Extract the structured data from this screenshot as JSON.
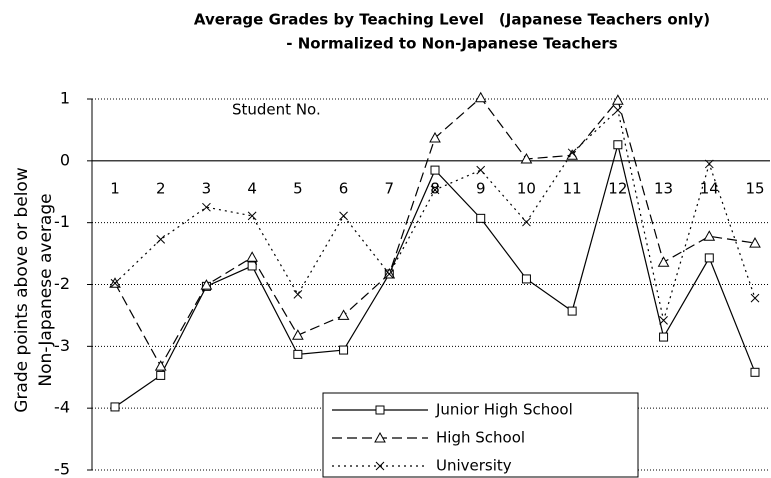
{
  "chart_data": {
    "type": "line",
    "title": "Average Grades by Teaching Level　(Japanese Teachers only)",
    "subtitle": "- Normalized to Non-Japanese Teachers",
    "y_label": "Grade points above or below",
    "y_label2": "Non-Japanese average",
    "annotation": "Student No.",
    "categories": [
      "1",
      "2",
      "3",
      "4",
      "5",
      "6",
      "7",
      "8",
      "9",
      "10",
      "11",
      "12",
      "13",
      "14",
      "15"
    ],
    "series": [
      {
        "name": "Junior High School",
        "color": "#000000",
        "dash": "solid",
        "marker": "square",
        "values": [
          -3.98,
          -3.47,
          -2.03,
          -1.7,
          -3.13,
          -3.06,
          -1.83,
          -0.15,
          -0.93,
          -1.91,
          -2.43,
          0.26,
          -2.85,
          -1.57,
          -3.42
        ]
      },
      {
        "name": "High School",
        "color": "#000000",
        "dash": "dashed",
        "marker": "triangle",
        "values": [
          -1.98,
          -3.32,
          -2.01,
          -1.56,
          -2.82,
          -2.5,
          -1.83,
          0.37,
          1.02,
          0.03,
          0.09,
          0.98,
          -1.64,
          -1.22,
          -1.33
        ]
      },
      {
        "name": "University",
        "color": "#000000",
        "dash": "dotted",
        "marker": "x",
        "values": [
          -1.98,
          -1.27,
          -0.75,
          -0.89,
          -2.16,
          -0.89,
          -1.83,
          -0.47,
          -0.15,
          -0.99,
          0.13,
          0.82,
          -2.58,
          -0.05,
          -2.22
        ]
      }
    ],
    "ylim": [
      -5,
      1
    ],
    "yticks": [
      1,
      0,
      -1,
      -2,
      -3,
      -4,
      -5
    ],
    "grid": true
  }
}
